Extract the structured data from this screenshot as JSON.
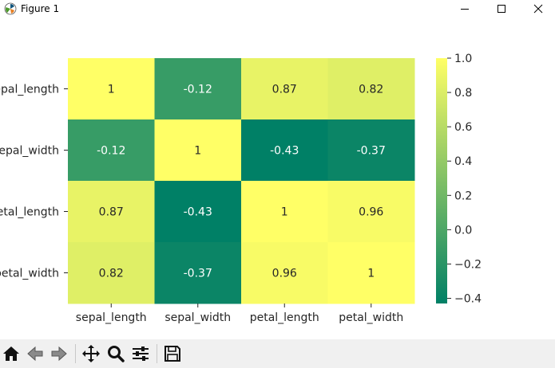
{
  "window": {
    "title": "Figure 1",
    "controls": [
      "minimize-icon",
      "maximize-icon",
      "close-icon"
    ]
  },
  "toolbar": {
    "buttons": [
      {
        "name": "home-button",
        "icon": "home-icon"
      },
      {
        "name": "back-button",
        "icon": "back-arrow-icon"
      },
      {
        "name": "forward-button",
        "icon": "forward-arrow-icon"
      },
      {
        "name": "pan-button",
        "icon": "move-icon"
      },
      {
        "name": "zoom-button",
        "icon": "magnifier-icon"
      },
      {
        "name": "configure-subplots-button",
        "icon": "sliders-icon"
      },
      {
        "name": "save-button",
        "icon": "floppy-disk-icon"
      }
    ]
  },
  "colormap": [
    "#008066",
    "#ffff66"
  ],
  "chart_data": {
    "type": "heatmap",
    "x_labels": [
      "sepal_length",
      "sepal_width",
      "petal_length",
      "petal_width"
    ],
    "y_labels": [
      "sepal_length",
      "sepal_width",
      "petal_length",
      "petal_width"
    ],
    "values": [
      [
        1,
        -0.12,
        0.87,
        0.82
      ],
      [
        -0.12,
        1,
        -0.43,
        -0.37
      ],
      [
        0.87,
        -0.43,
        1,
        0.96
      ],
      [
        0.82,
        -0.37,
        0.96,
        1
      ]
    ],
    "annotations": [
      [
        "1",
        "-0.12",
        "0.87",
        "0.82"
      ],
      [
        "-0.12",
        "1",
        "-0.43",
        "-0.37"
      ],
      [
        "0.87",
        "-0.43",
        "1",
        "0.96"
      ],
      [
        "0.82",
        "-0.37",
        "0.96",
        "1"
      ]
    ],
    "colorbar": {
      "range": [
        -0.43,
        1.0
      ],
      "ticks": [
        1.0,
        0.8,
        0.6,
        0.4,
        0.2,
        0.0,
        -0.2,
        -0.4
      ],
      "tick_labels": [
        "1.0",
        "0.8",
        "0.6",
        "0.4",
        "0.2",
        "0.0",
        "−0.2",
        "−0.4"
      ]
    }
  }
}
